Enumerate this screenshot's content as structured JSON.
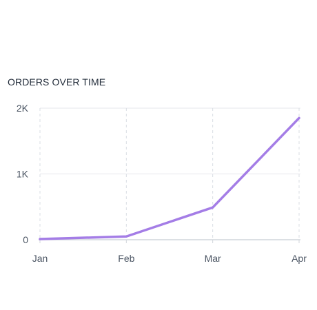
{
  "chart_data": {
    "type": "line",
    "title": "ORDERS OVER TIME",
    "xlabel": "",
    "ylabel": "",
    "categories": [
      "Jan",
      "Feb",
      "Mar",
      "Apr"
    ],
    "series": [
      {
        "values": [
          10,
          50,
          490,
          1850
        ]
      }
    ],
    "ylim": [
      0,
      2000
    ],
    "yticks": [
      {
        "value": 0,
        "label": "0"
      },
      {
        "value": 1000,
        "label": "1K"
      },
      {
        "value": 2000,
        "label": "2K"
      }
    ],
    "grid": true,
    "legend": "none",
    "colors": {
      "line": "#a47de6",
      "grid_horizontal": "#e5e7eb",
      "grid_vertical": "#d9dde3",
      "axis": "#d1d5db",
      "tick_text": "#4b5563",
      "title_text": "#1f2937"
    }
  }
}
